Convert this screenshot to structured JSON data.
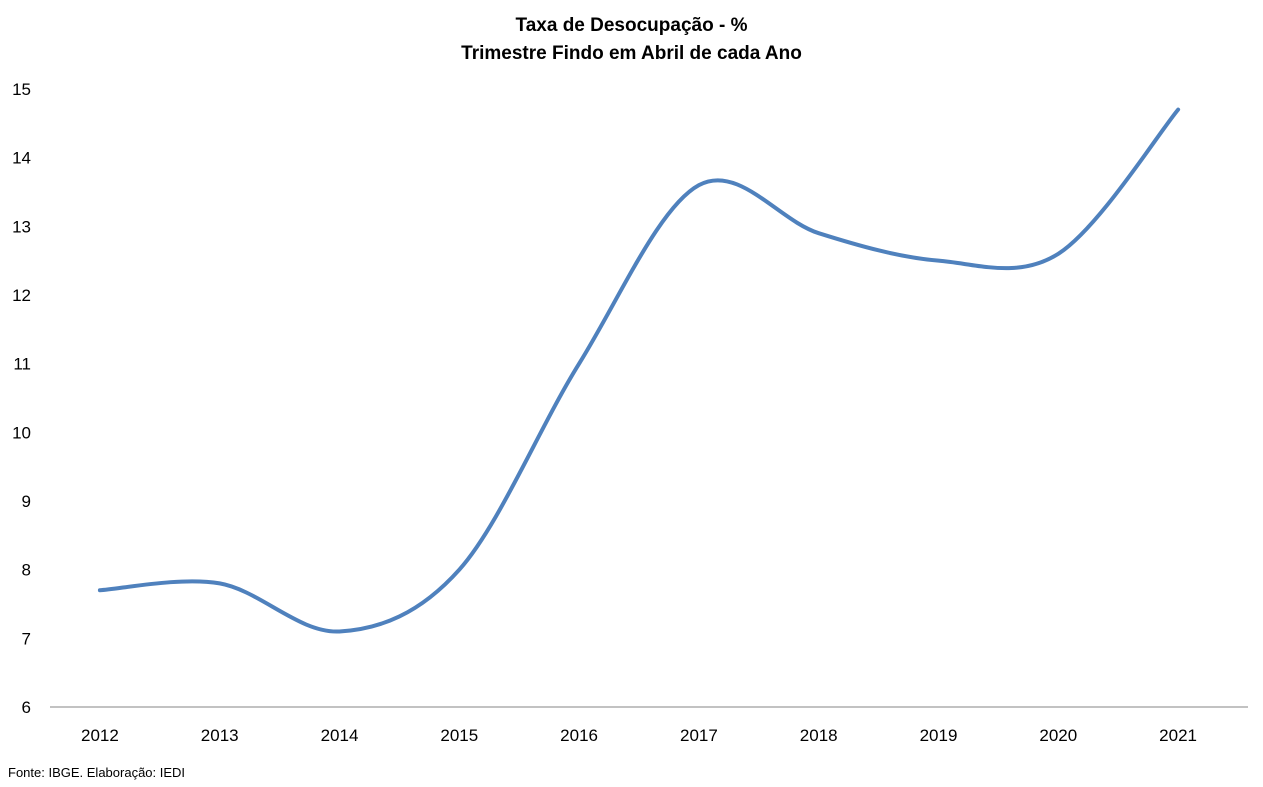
{
  "chart_data": {
    "type": "line",
    "title": "Taxa de Desocupação - %",
    "subtitle": "Trimestre Findo em Abril de cada Ano",
    "xlabel": "",
    "ylabel": "",
    "categories": [
      "2012",
      "2013",
      "2014",
      "2015",
      "2016",
      "2017",
      "2018",
      "2019",
      "2020",
      "2021"
    ],
    "series": [
      {
        "values": [
          7.7,
          7.8,
          7.1,
          8.0,
          11.0,
          13.6,
          12.9,
          12.5,
          12.6,
          14.7
        ]
      }
    ],
    "ylim": [
      6,
      15
    ],
    "yticks": [
      6,
      7,
      8,
      9,
      10,
      11,
      12,
      13,
      14,
      15
    ],
    "grid": false,
    "legend": "none",
    "line_color": "#4F81BD"
  },
  "source": "Fonte: IBGE. Elaboração: IEDI"
}
